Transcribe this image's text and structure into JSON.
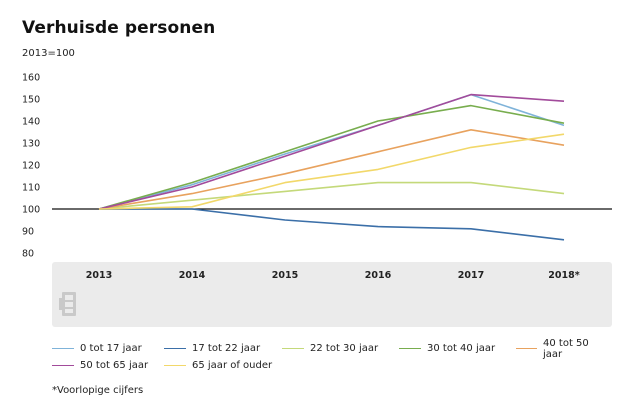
{
  "chart_data": {
    "type": "line",
    "title": "Verhuisde personen",
    "subtitle": "2013=100",
    "categories": [
      "2013",
      "2014",
      "2015",
      "2016",
      "2017",
      "2018*"
    ],
    "ylim": [
      80,
      160
    ],
    "yticks": [
      80,
      90,
      100,
      110,
      120,
      130,
      140,
      150,
      160
    ],
    "reference_line": 100,
    "grid": false,
    "legend_position": "bottom",
    "series": [
      {
        "name": "0 tot 17 jaar",
        "color": "#7fb3d9",
        "values": [
          100,
          111,
          125,
          138,
          152,
          138
        ]
      },
      {
        "name": "17 tot 22 jaar",
        "color": "#3b6fa8",
        "values": [
          100,
          100,
          95,
          92,
          91,
          86
        ]
      },
      {
        "name": "22 tot 30 jaar",
        "color": "#c4d97a",
        "values": [
          100,
          104,
          108,
          112,
          112,
          107
        ]
      },
      {
        "name": "30 tot 40 jaar",
        "color": "#78ad4e",
        "values": [
          100,
          112,
          126,
          140,
          147,
          139
        ]
      },
      {
        "name": "40 tot 50 jaar",
        "color": "#e8a25e",
        "values": [
          100,
          107,
          116,
          126,
          136,
          129
        ]
      },
      {
        "name": "50 tot 65 jaar",
        "color": "#a24b9b",
        "values": [
          100,
          110,
          124,
          138,
          152,
          149
        ]
      },
      {
        "name": "65 jaar of ouder",
        "color": "#f2d86a",
        "values": [
          100,
          101,
          112,
          118,
          128,
          134
        ]
      }
    ],
    "footnote": "*Voorlopige cijfers"
  },
  "logo": {
    "icon": "cbs-logo-icon"
  }
}
